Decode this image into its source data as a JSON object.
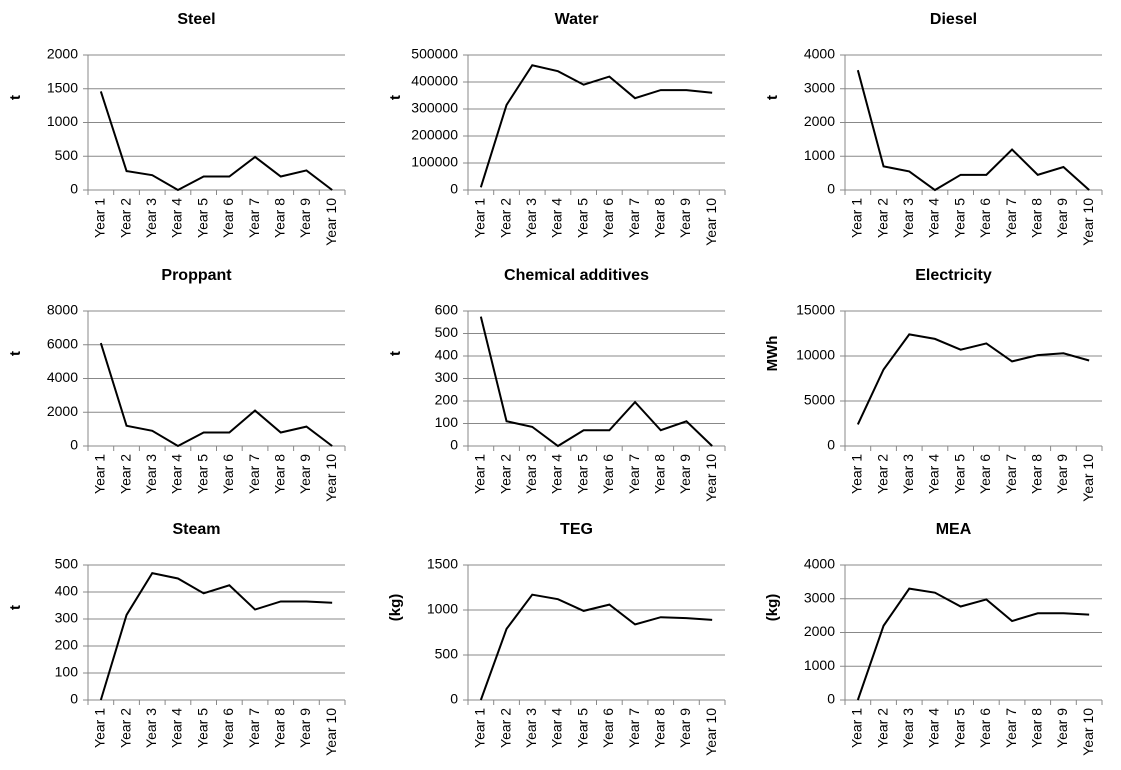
{
  "chart_data": [
    {
      "type": "line",
      "title": "Steel",
      "y_label": "t",
      "categories": [
        "Year 1",
        "Year 2",
        "Year 3",
        "Year 4",
        "Year 5",
        "Year 6",
        "Year 7",
        "Year 8",
        "Year 9",
        "Year 10"
      ],
      "series": [
        {
          "name": "Steel",
          "color": "#000000",
          "values": [
            1460,
            280,
            220,
            0,
            200,
            200,
            490,
            200,
            290,
            0
          ]
        }
      ],
      "ylim": [
        0,
        2000
      ],
      "yticks": [
        0,
        500,
        1000,
        1500,
        2000
      ],
      "grid": true
    },
    {
      "type": "line",
      "title": "Water",
      "y_label": "t",
      "categories": [
        "Year 1",
        "Year 2",
        "Year 3",
        "Year 4",
        "Year 5",
        "Year 6",
        "Year 7",
        "Year 8",
        "Year 9",
        "Year 10"
      ],
      "series": [
        {
          "name": "Water",
          "color": "#000000",
          "values": [
            10000,
            315000,
            462000,
            440000,
            390000,
            420000,
            340000,
            370000,
            370000,
            360000
          ]
        }
      ],
      "ylim": [
        0,
        500000
      ],
      "yticks": [
        0,
        100000,
        200000,
        300000,
        400000,
        500000
      ],
      "grid": true
    },
    {
      "type": "line",
      "title": "Diesel",
      "y_label": "t",
      "categories": [
        "Year 1",
        "Year 2",
        "Year 3",
        "Year 4",
        "Year 5",
        "Year 6",
        "Year 7",
        "Year 8",
        "Year 9",
        "Year 10"
      ],
      "series": [
        {
          "name": "Diesel",
          "color": "#000000",
          "values": [
            3550,
            700,
            550,
            0,
            450,
            450,
            1200,
            450,
            680,
            0
          ]
        }
      ],
      "ylim": [
        0,
        4000
      ],
      "yticks": [
        0,
        1000,
        2000,
        3000,
        4000
      ],
      "grid": true
    },
    {
      "type": "line",
      "title": "Proppant",
      "y_label": "t",
      "categories": [
        "Year 1",
        "Year 2",
        "Year 3",
        "Year 4",
        "Year 5",
        "Year 6",
        "Year 7",
        "Year 8",
        "Year 9",
        "Year 10"
      ],
      "series": [
        {
          "name": "Proppant",
          "color": "#000000",
          "values": [
            6100,
            1200,
            900,
            0,
            800,
            800,
            2100,
            800,
            1150,
            0
          ]
        }
      ],
      "ylim": [
        0,
        8000
      ],
      "yticks": [
        0,
        2000,
        4000,
        6000,
        8000
      ],
      "grid": true
    },
    {
      "type": "line",
      "title": "Chemical additives",
      "y_label": "t",
      "categories": [
        "Year 1",
        "Year 2",
        "Year 3",
        "Year 4",
        "Year 5",
        "Year 6",
        "Year 7",
        "Year 8",
        "Year 9",
        "Year 10"
      ],
      "series": [
        {
          "name": "Chemical additives",
          "color": "#000000",
          "values": [
            575,
            110,
            85,
            0,
            70,
            70,
            195,
            70,
            110,
            0
          ]
        }
      ],
      "ylim": [
        0,
        600
      ],
      "yticks": [
        0,
        100,
        200,
        300,
        400,
        500,
        600
      ],
      "grid": true
    },
    {
      "type": "line",
      "title": "Electricity",
      "y_label": "MWh",
      "categories": [
        "Year 1",
        "Year 2",
        "Year 3",
        "Year 4",
        "Year 5",
        "Year 6",
        "Year 7",
        "Year 8",
        "Year 9",
        "Year 10"
      ],
      "series": [
        {
          "name": "Electricity",
          "color": "#000000",
          "values": [
            2400,
            8500,
            12400,
            11900,
            10700,
            11400,
            9400,
            10100,
            10300,
            9500
          ]
        }
      ],
      "ylim": [
        0,
        15000
      ],
      "yticks": [
        0,
        5000,
        10000,
        15000
      ],
      "grid": true
    },
    {
      "type": "line",
      "title": "Steam",
      "y_label": "t",
      "categories": [
        "Year 1",
        "Year 2",
        "Year 3",
        "Year 4",
        "Year 5",
        "Year 6",
        "Year 7",
        "Year 8",
        "Year 9",
        "Year 10"
      ],
      "series": [
        {
          "name": "Steam",
          "color": "#000000",
          "values": [
            0,
            315,
            470,
            450,
            395,
            425,
            335,
            365,
            365,
            360
          ]
        }
      ],
      "ylim": [
        0,
        500
      ],
      "yticks": [
        0,
        100,
        200,
        300,
        400,
        500
      ],
      "grid": true
    },
    {
      "type": "line",
      "title": "TEG",
      "y_label": "(kg)",
      "categories": [
        "Year 1",
        "Year 2",
        "Year 3",
        "Year 4",
        "Year 5",
        "Year 6",
        "Year 7",
        "Year 8",
        "Year 9",
        "Year 10"
      ],
      "series": [
        {
          "name": "TEG",
          "color": "#000000",
          "values": [
            0,
            790,
            1170,
            1120,
            990,
            1060,
            840,
            920,
            910,
            890
          ]
        }
      ],
      "ylim": [
        0,
        1500
      ],
      "yticks": [
        0,
        500,
        1000,
        1500
      ],
      "grid": true
    },
    {
      "type": "line",
      "title": "MEA",
      "y_label": "(kg)",
      "categories": [
        "Year 1",
        "Year 2",
        "Year 3",
        "Year 4",
        "Year 5",
        "Year 6",
        "Year 7",
        "Year 8",
        "Year 9",
        "Year 10"
      ],
      "series": [
        {
          "name": "MEA",
          "color": "#000000",
          "values": [
            0,
            2200,
            3300,
            3180,
            2770,
            2980,
            2340,
            2570,
            2570,
            2530
          ]
        }
      ],
      "ylim": [
        0,
        4000
      ],
      "yticks": [
        0,
        1000,
        2000,
        3000,
        4000
      ],
      "grid": true
    }
  ]
}
